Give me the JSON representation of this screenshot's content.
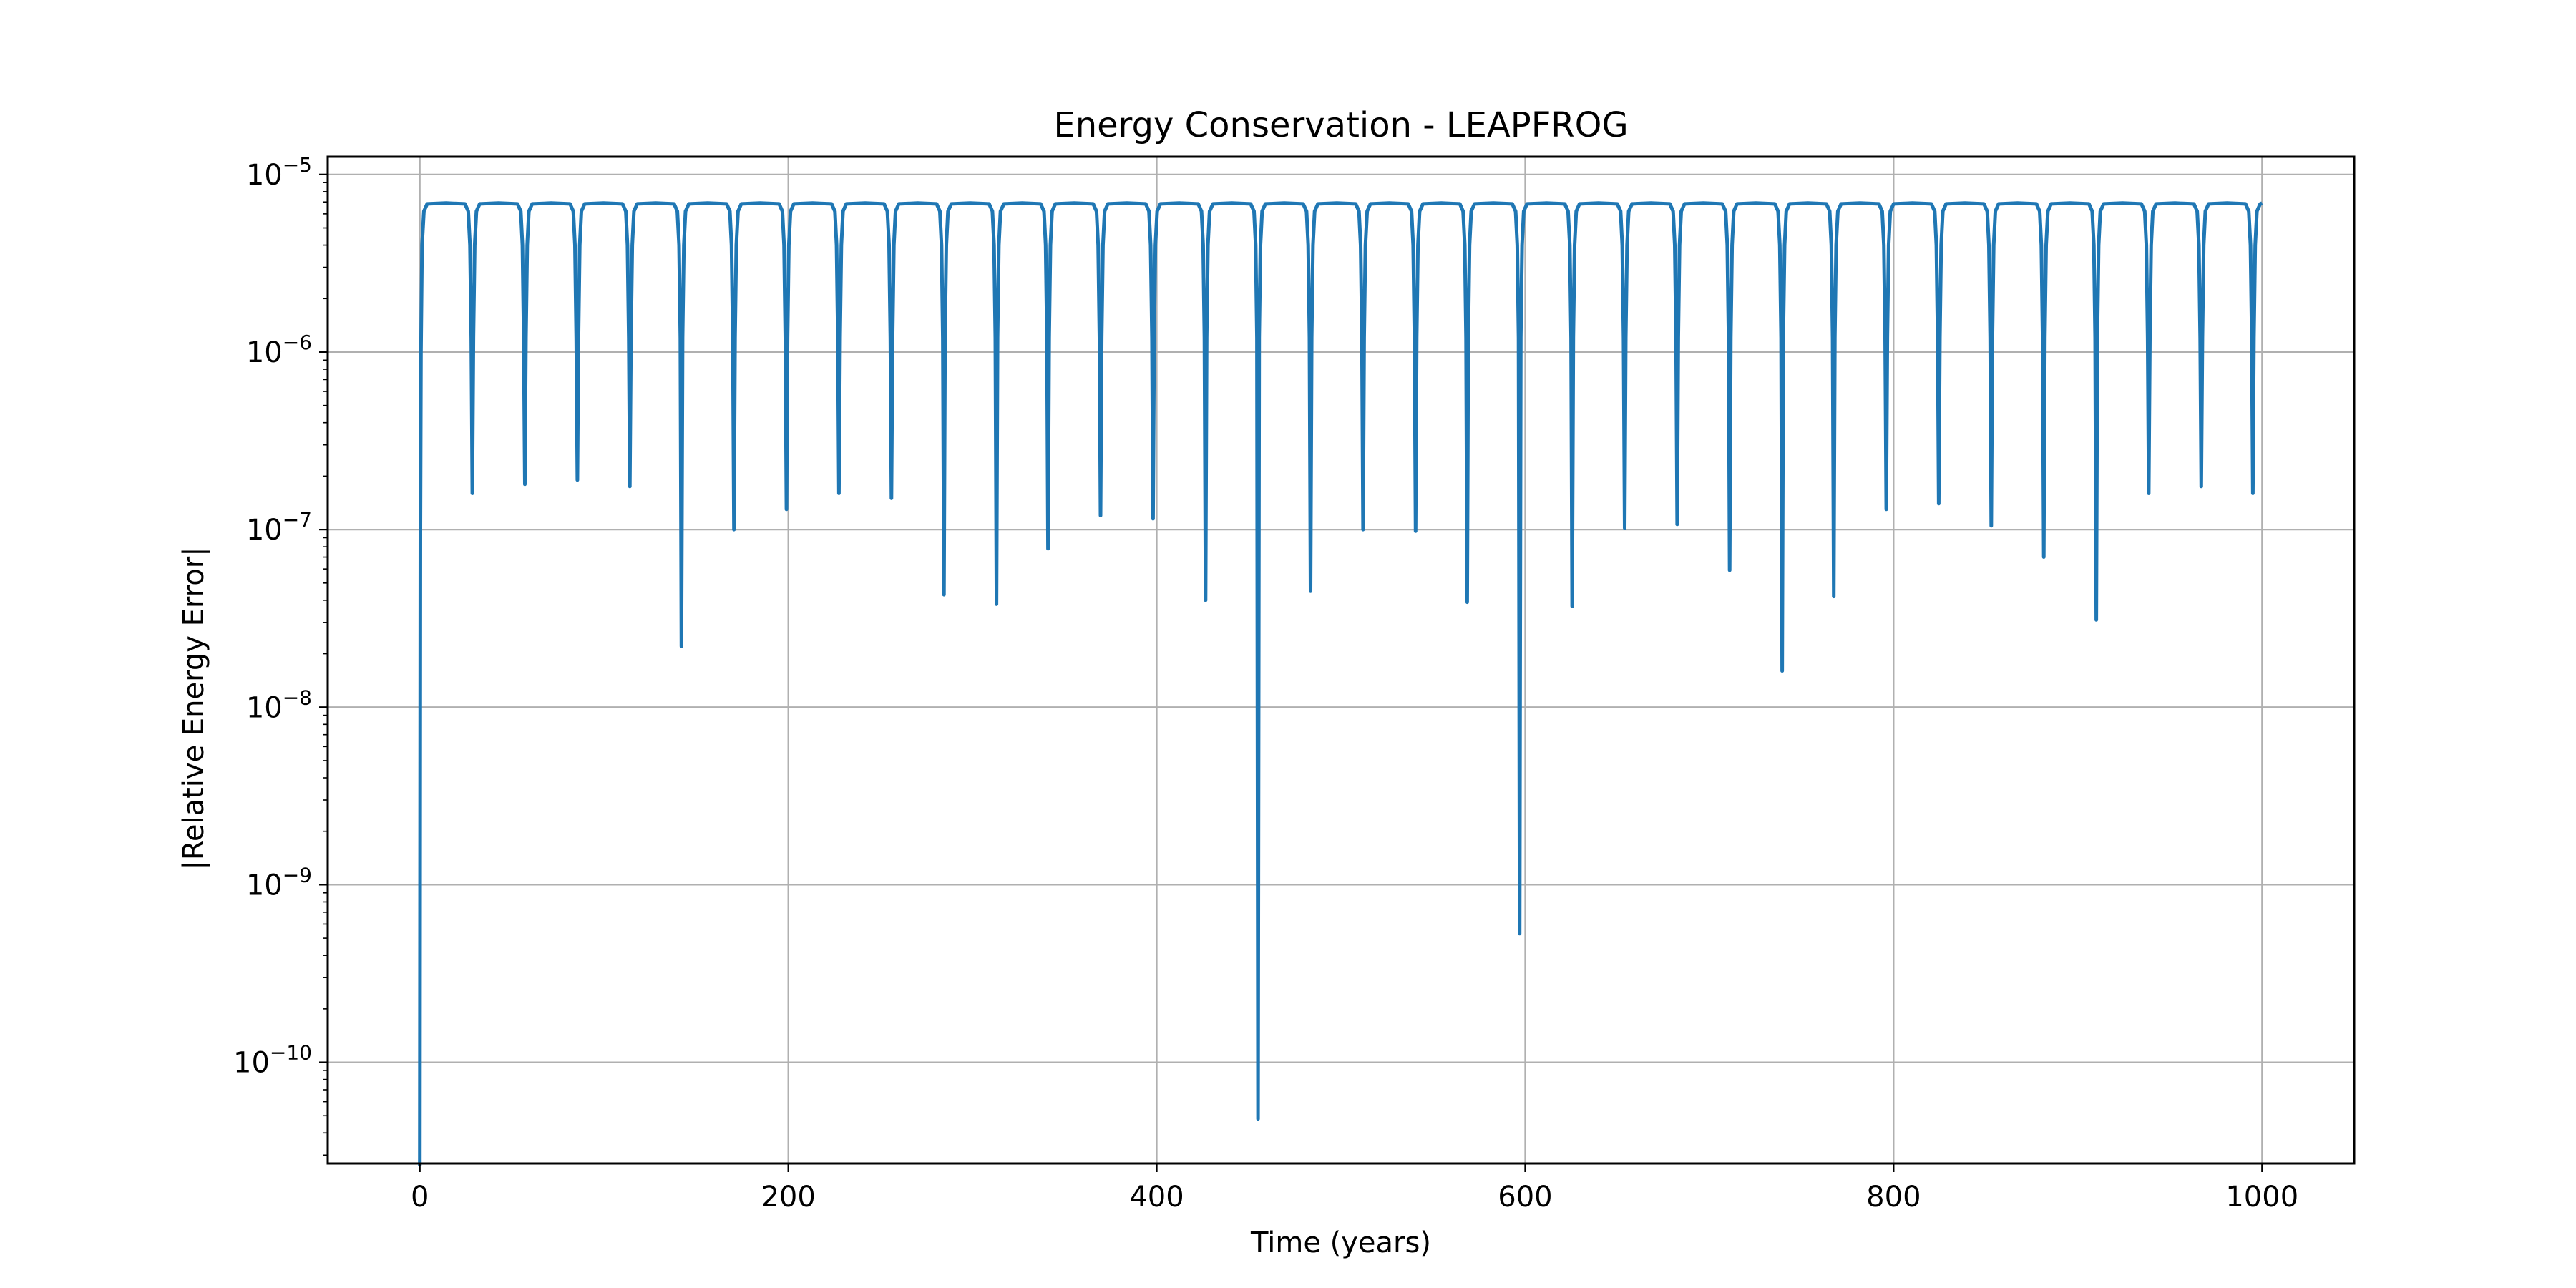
{
  "chart_data": {
    "type": "line",
    "title": "Energy Conservation - LEAPFROG",
    "xlabel": "Time (years)",
    "ylabel": "|Relative Energy Error|",
    "xscale": "linear",
    "yscale": "log",
    "xlim": [
      -50,
      1050
    ],
    "ylim_exp": [
      -10.57,
      -4.9
    ],
    "x_ticks": [
      0,
      200,
      400,
      600,
      800,
      1000
    ],
    "x_tick_labels": [
      "0",
      "200",
      "400",
      "600",
      "800",
      "1000"
    ],
    "y_ticks": [
      {
        "exp": -5,
        "base": "10",
        "sup": "−5"
      },
      {
        "exp": -6,
        "base": "10",
        "sup": "−6"
      },
      {
        "exp": -7,
        "base": "10",
        "sup": "−7"
      },
      {
        "exp": -8,
        "base": "10",
        "sup": "−8"
      },
      {
        "exp": -9,
        "base": "10",
        "sup": "−9"
      },
      {
        "exp": -10,
        "base": "10",
        "sup": "−10"
      }
    ],
    "grid": true,
    "series": [
      {
        "name": "LEAPFROG",
        "color": "#1f77b4",
        "plateau": 6.9e-06,
        "start": {
          "x": 0,
          "y": 2.6e-11
        },
        "end_x": 1000,
        "dips": [
          {
            "x": 28.5,
            "y": 1.6e-07
          },
          {
            "x": 57,
            "y": 1.8e-07
          },
          {
            "x": 85.5,
            "y": 1.9e-07
          },
          {
            "x": 114,
            "y": 1.75e-07
          },
          {
            "x": 142,
            "y": 2.2e-08
          },
          {
            "x": 170.5,
            "y": 1e-07
          },
          {
            "x": 199,
            "y": 1.3e-07
          },
          {
            "x": 227.5,
            "y": 1.6e-07
          },
          {
            "x": 256,
            "y": 1.5e-07
          },
          {
            "x": 284.5,
            "y": 4.3e-08
          },
          {
            "x": 313,
            "y": 3.8e-08
          },
          {
            "x": 341,
            "y": 7.8e-08
          },
          {
            "x": 369.5,
            "y": 1.2e-07
          },
          {
            "x": 398,
            "y": 1.15e-07
          },
          {
            "x": 426.5,
            "y": 4e-08
          },
          {
            "x": 455,
            "y": 4.8e-11
          },
          {
            "x": 483.5,
            "y": 4.5e-08
          },
          {
            "x": 512,
            "y": 1e-07
          },
          {
            "x": 540.5,
            "y": 9.8e-08
          },
          {
            "x": 568.5,
            "y": 3.9e-08
          },
          {
            "x": 597,
            "y": 5.3e-10
          },
          {
            "x": 625.5,
            "y": 3.7e-08
          },
          {
            "x": 654,
            "y": 1.02e-07
          },
          {
            "x": 682.5,
            "y": 1.07e-07
          },
          {
            "x": 711,
            "y": 5.9e-08
          },
          {
            "x": 739.5,
            "y": 1.6e-08
          },
          {
            "x": 767.5,
            "y": 4.2e-08
          },
          {
            "x": 796,
            "y": 1.3e-07
          },
          {
            "x": 824.5,
            "y": 1.4e-07
          },
          {
            "x": 853,
            "y": 1.05e-07
          },
          {
            "x": 881.5,
            "y": 7e-08
          },
          {
            "x": 910,
            "y": 3.1e-08
          },
          {
            "x": 938.5,
            "y": 1.6e-07
          },
          {
            "x": 967,
            "y": 1.75e-07
          },
          {
            "x": 995,
            "y": 1.6e-07
          }
        ]
      }
    ]
  }
}
